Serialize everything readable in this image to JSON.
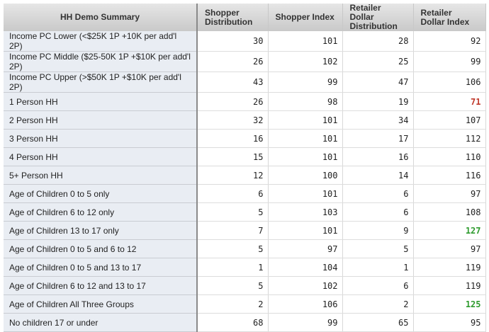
{
  "headers": [
    "HH Demo Summary",
    "Shopper Distribution",
    "Shopper Index",
    "Retailer Dollar Distribution",
    "Retailer Dollar Index"
  ],
  "colors": {
    "low": "#c0392b",
    "high": "#2e9b2e"
  },
  "rows": [
    {
      "label": "Income PC Lower (<$25K 1P +10K per add'l 2P)",
      "values": [
        "30",
        "101",
        "28",
        "92"
      ],
      "flag": ""
    },
    {
      "label": "Income PC Middle ($25-50K 1P +$10K per add'l 2P)",
      "values": [
        "26",
        "102",
        "25",
        "99"
      ],
      "flag": ""
    },
    {
      "label": "Income PC Upper (>$50K 1P +$10K per add'l 2P)",
      "values": [
        "43",
        "99",
        "47",
        "106"
      ],
      "flag": ""
    },
    {
      "label": "1 Person HH",
      "values": [
        "26",
        "98",
        "19",
        "71"
      ],
      "flag": "low"
    },
    {
      "label": "2 Person HH",
      "values": [
        "32",
        "101",
        "34",
        "107"
      ],
      "flag": ""
    },
    {
      "label": "3 Person HH",
      "values": [
        "16",
        "101",
        "17",
        "112"
      ],
      "flag": ""
    },
    {
      "label": "4 Person HH",
      "values": [
        "15",
        "101",
        "16",
        "110"
      ],
      "flag": ""
    },
    {
      "label": "5+ Person HH",
      "values": [
        "12",
        "100",
        "14",
        "116"
      ],
      "flag": ""
    },
    {
      "label": "Age of Children 0 to 5 only",
      "values": [
        "6",
        "101",
        "6",
        "97"
      ],
      "flag": ""
    },
    {
      "label": "Age of Children 6 to 12 only",
      "values": [
        "5",
        "103",
        "6",
        "108"
      ],
      "flag": ""
    },
    {
      "label": "Age of Children 13 to 17 only",
      "values": [
        "7",
        "101",
        "9",
        "127"
      ],
      "flag": "high"
    },
    {
      "label": "Age of Children 0 to 5 and 6 to 12",
      "values": [
        "5",
        "97",
        "5",
        "97"
      ],
      "flag": ""
    },
    {
      "label": "Age of Children 0 to 5 and 13 to 17",
      "values": [
        "1",
        "104",
        "1",
        "119"
      ],
      "flag": ""
    },
    {
      "label": "Age of Children 6 to 12 and 13 to 17",
      "values": [
        "5",
        "102",
        "6",
        "119"
      ],
      "flag": ""
    },
    {
      "label": "Age of Children All Three Groups",
      "values": [
        "2",
        "106",
        "2",
        "125"
      ],
      "flag": "high"
    },
    {
      "label": "No children 17 or under",
      "values": [
        "68",
        "99",
        "65",
        "95"
      ],
      "flag": ""
    }
  ]
}
